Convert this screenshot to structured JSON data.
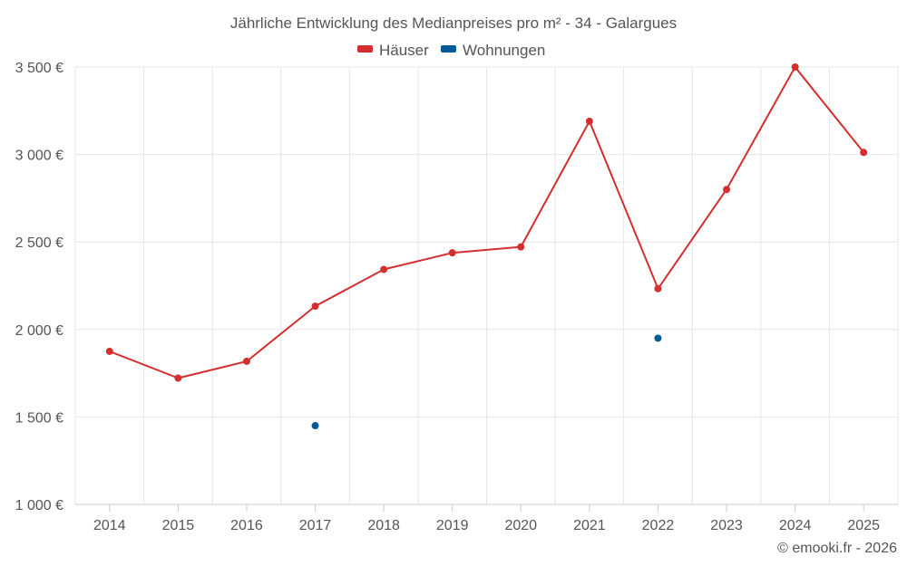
{
  "chart_data": {
    "type": "line",
    "title": "Jährliche Entwicklung des Medianpreises pro m² - 34 - Galargues",
    "categories": [
      "2014",
      "2015",
      "2016",
      "2017",
      "2018",
      "2019",
      "2020",
      "2021",
      "2022",
      "2023",
      "2024",
      "2025"
    ],
    "series": [
      {
        "name": "Häuser",
        "color": "#d32f2f",
        "values": [
          1875,
          1722,
          1818,
          2133,
          2343,
          2438,
          2472,
          3190,
          2233,
          2800,
          3500,
          3012
        ]
      },
      {
        "name": "Wohnungen",
        "color": "#005b96",
        "values": [
          null,
          null,
          null,
          1450,
          null,
          null,
          null,
          null,
          1950,
          null,
          null,
          null
        ]
      }
    ],
    "ylim": [
      1000,
      3500
    ],
    "yticks": [
      1000,
      1500,
      2000,
      2500,
      3000,
      3500
    ],
    "ytick_labels": [
      "1 000 €",
      "1 500 €",
      "2 000 €",
      "2 500 €",
      "3 000 €",
      "3 500 €"
    ],
    "xlabel": "",
    "ylabel": "",
    "grid": true,
    "legend_position": "top-center"
  },
  "credit": "© emooki.fr - 2026"
}
